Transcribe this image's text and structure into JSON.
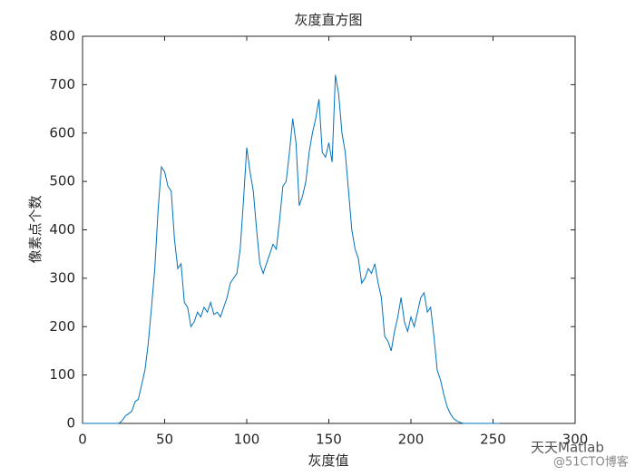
{
  "chart_data": {
    "type": "line",
    "title": "灰度直方图",
    "x_label": "灰度值",
    "y_label": "像素点个数",
    "x": [
      0,
      2,
      4,
      6,
      8,
      10,
      12,
      14,
      16,
      18,
      20,
      22,
      24,
      26,
      28,
      30,
      32,
      34,
      36,
      38,
      40,
      42,
      44,
      46,
      48,
      50,
      52,
      54,
      56,
      58,
      60,
      62,
      64,
      66,
      68,
      70,
      72,
      74,
      76,
      78,
      80,
      82,
      84,
      86,
      88,
      90,
      92,
      94,
      96,
      98,
      100,
      102,
      104,
      106,
      108,
      110,
      112,
      114,
      116,
      118,
      120,
      122,
      124,
      126,
      128,
      130,
      132,
      134,
      136,
      138,
      140,
      142,
      144,
      146,
      148,
      150,
      152,
      154,
      156,
      158,
      160,
      162,
      164,
      166,
      168,
      170,
      172,
      174,
      176,
      178,
      180,
      182,
      184,
      186,
      188,
      190,
      192,
      194,
      196,
      198,
      200,
      202,
      204,
      206,
      208,
      210,
      212,
      214,
      216,
      218,
      220,
      222,
      224,
      226,
      228,
      230,
      232,
      234,
      236,
      238,
      240,
      242,
      244,
      246,
      248,
      250,
      252,
      254
    ],
    "series": [
      {
        "name": "灰度直方图",
        "color": "#0072BD",
        "values": [
          0,
          0,
          0,
          0,
          0,
          0,
          0,
          0,
          0,
          0,
          0,
          0,
          5,
          15,
          20,
          25,
          45,
          50,
          80,
          110,
          165,
          240,
          320,
          440,
          530,
          520,
          490,
          480,
          380,
          320,
          330,
          250,
          240,
          200,
          210,
          230,
          220,
          240,
          230,
          250,
          225,
          230,
          220,
          240,
          260,
          290,
          300,
          310,
          360,
          460,
          570,
          520,
          480,
          400,
          330,
          310,
          330,
          350,
          370,
          360,
          420,
          490,
          500,
          560,
          630,
          580,
          450,
          470,
          500,
          560,
          600,
          630,
          670,
          560,
          550,
          580,
          540,
          720,
          680,
          600,
          560,
          480,
          400,
          360,
          340,
          290,
          300,
          320,
          310,
          330,
          290,
          260,
          180,
          170,
          150,
          190,
          220,
          260,
          210,
          190,
          220,
          200,
          230,
          260,
          270,
          230,
          240,
          180,
          110,
          90,
          60,
          35,
          20,
          10,
          5,
          2,
          0,
          0,
          0,
          0,
          0,
          0,
          0,
          0,
          0,
          0,
          0,
          0
        ]
      }
    ],
    "xlim": [
      0,
      300
    ],
    "xticks": [
      0,
      50,
      100,
      150,
      200,
      250,
      300
    ],
    "ylim": [
      0,
      800
    ],
    "yticks": [
      0,
      100,
      200,
      300,
      400,
      500,
      600,
      700,
      800
    ],
    "annotations": [
      "天天Matlab",
      "@51CTO博客"
    ]
  }
}
